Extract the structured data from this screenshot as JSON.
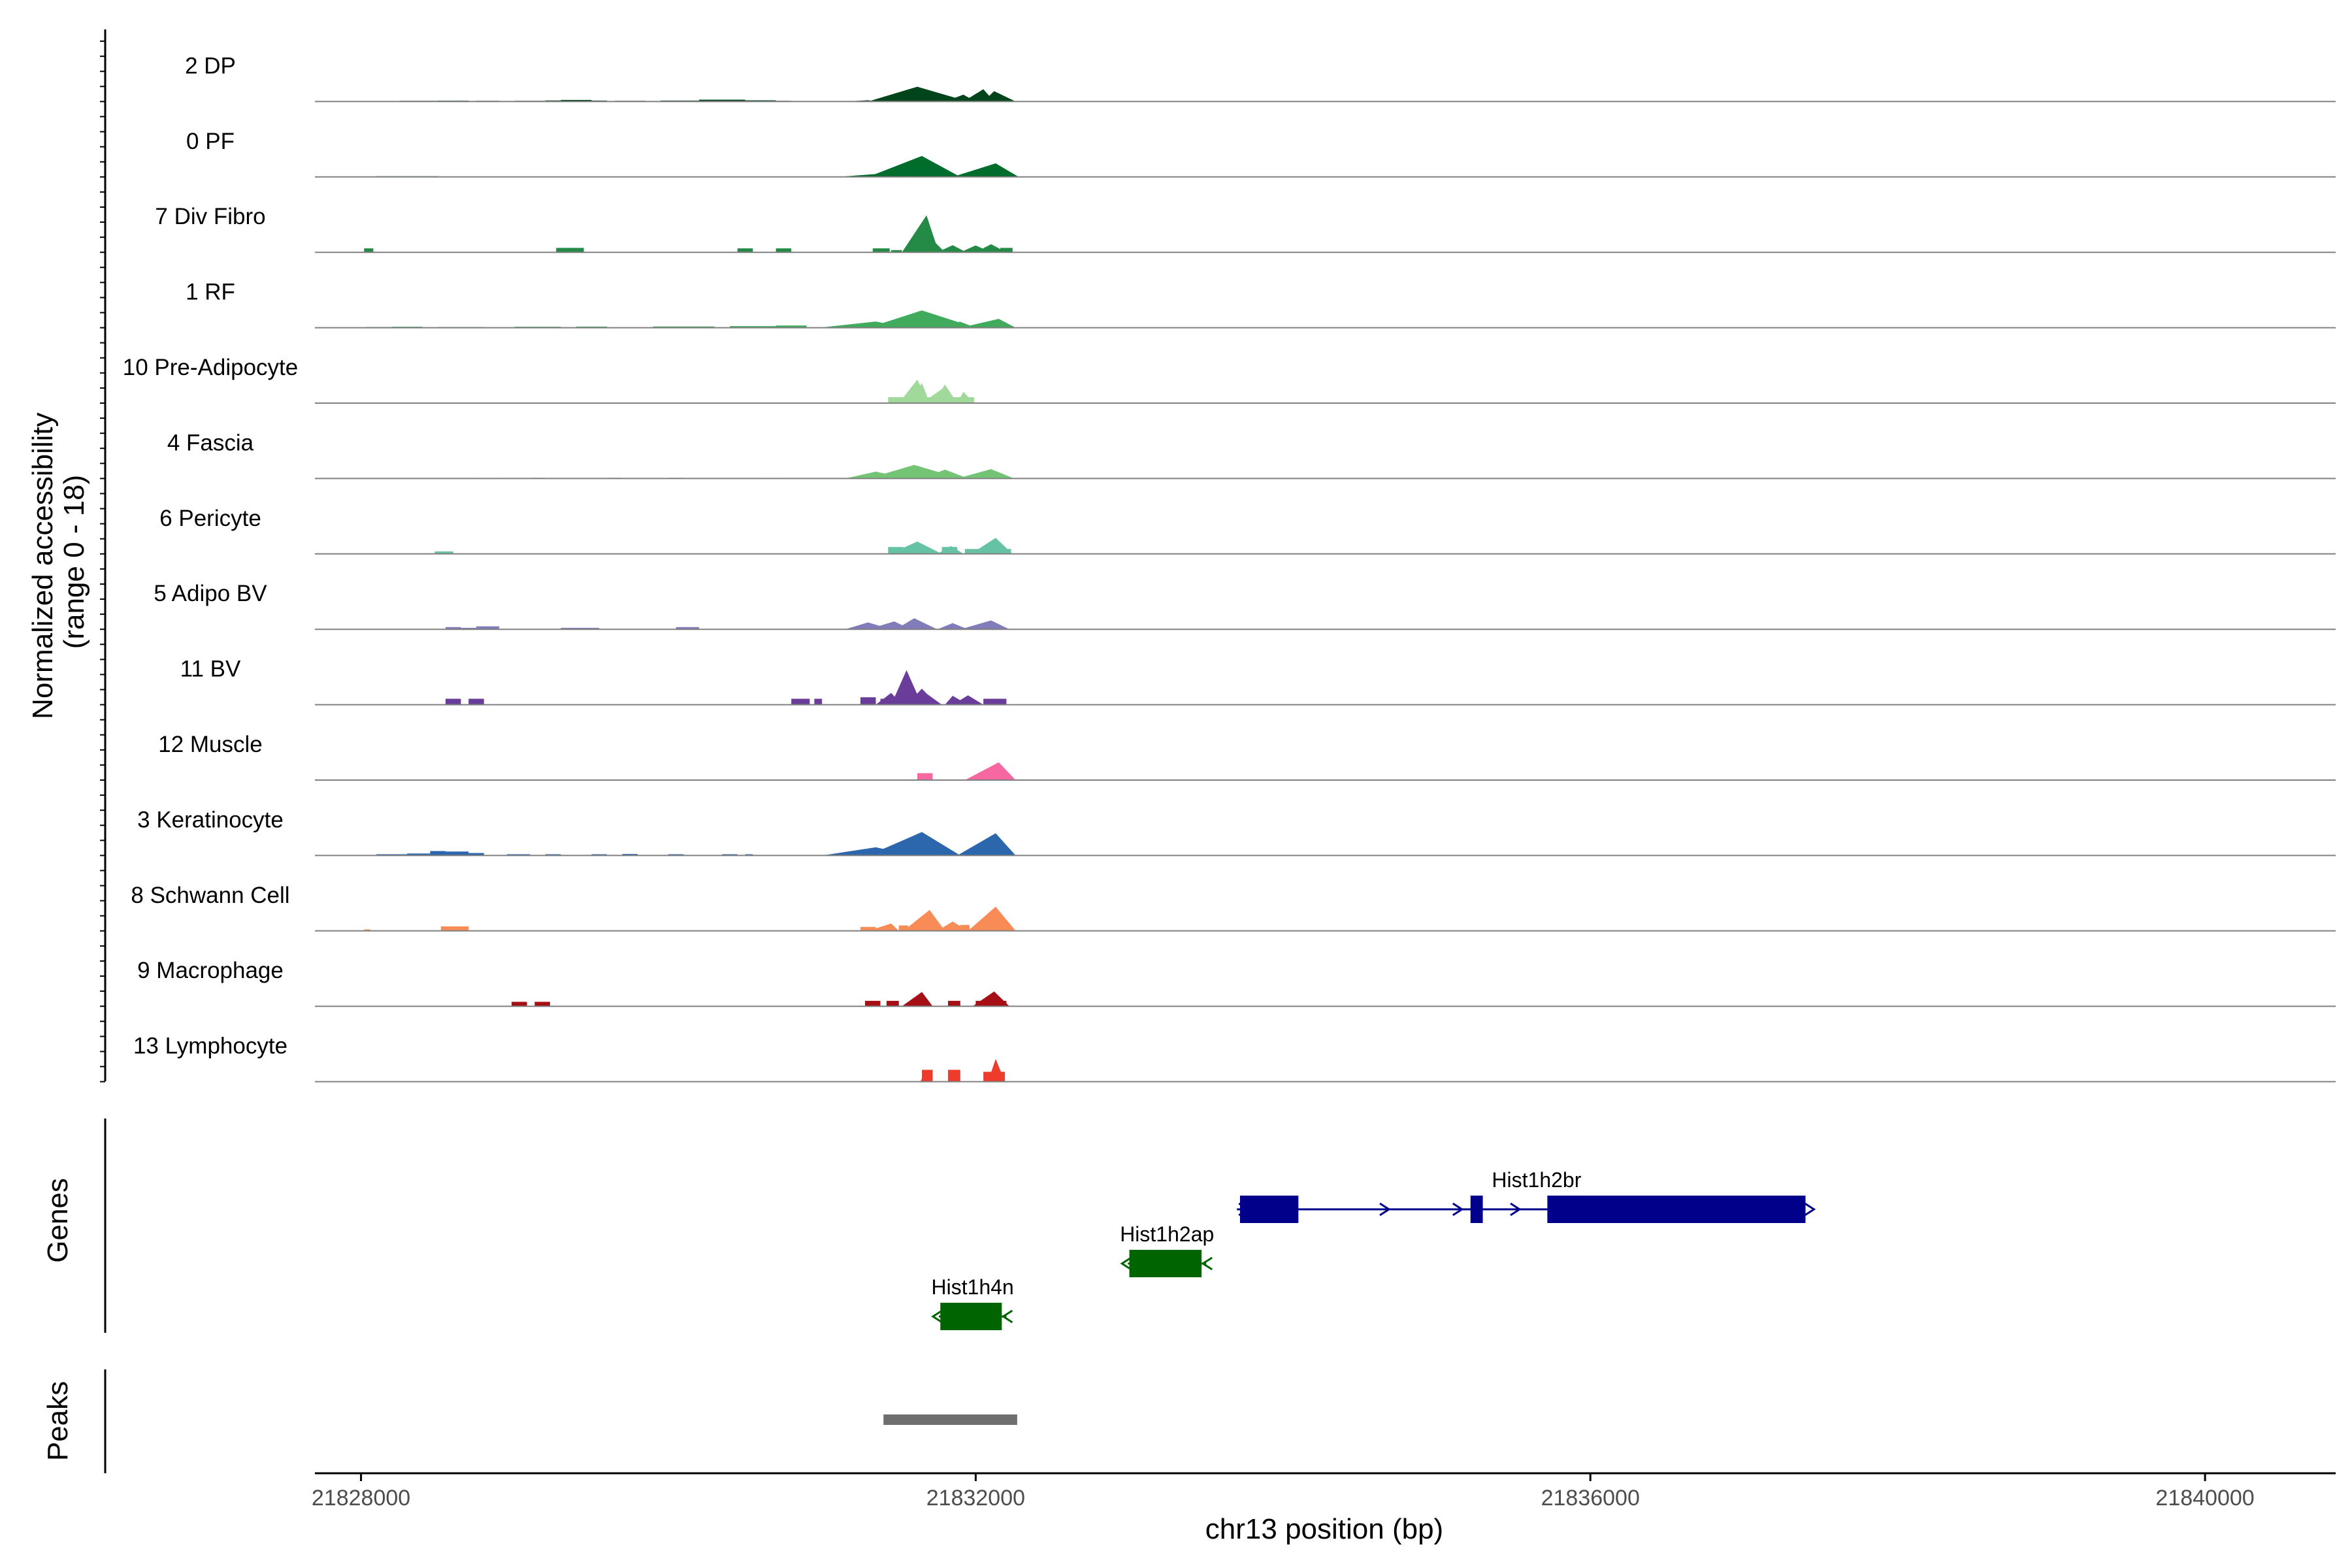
{
  "chart_data": {
    "type": "area",
    "xlabel": "chr13 position (bp)",
    "ylabel": "Normalized accessibility\n(range 0 - 18)",
    "xlim": [
      21827700,
      21840850
    ],
    "ylim": [
      0,
      18
    ],
    "xticks": [
      21828000,
      21832000,
      21836000,
      21840000
    ],
    "panels": {
      "genes_label": "Genes",
      "peaks_label": "Peaks"
    },
    "tracks": [
      {
        "name": "2 DP",
        "color": "#00441b",
        "segments": [
          [
            21828250,
            21828500,
            0.3
          ],
          [
            21828500,
            21828700,
            0.35
          ],
          [
            21828750,
            21828900,
            0.3
          ],
          [
            21829000,
            21829200,
            0.3
          ],
          [
            21829200,
            21829300,
            0.45
          ],
          [
            21829300,
            21829500,
            0.65
          ],
          [
            21829500,
            21829600,
            0.4
          ],
          [
            21829650,
            21829850,
            0.3
          ],
          [
            21829950,
            21830200,
            0.4
          ],
          [
            21830200,
            21830500,
            0.75
          ],
          [
            21830500,
            21830700,
            0.5
          ],
          [
            21830700,
            21830800,
            0.3
          ]
        ],
        "peaks": [
          [
            21831150,
            21831300,
            21831350,
            0.55
          ],
          [
            21831300,
            21831620,
            21831950,
            6.0
          ],
          [
            21831500,
            21831700,
            21831800,
            4.4
          ],
          [
            21831800,
            21831920,
            21832000,
            2.8
          ],
          [
            21831920,
            21832050,
            21832120,
            5.0
          ],
          [
            21832050,
            21832120,
            21832260,
            4.2
          ]
        ]
      },
      {
        "name": "0 PF",
        "color": "#006d2c",
        "segments": [
          [
            21828100,
            21828300,
            0.3
          ],
          [
            21828300,
            21828500,
            0.3
          ],
          [
            21828500,
            21828800,
            0.2
          ],
          [
            21828900,
            21829000,
            0.2
          ],
          [
            21829300,
            21829400,
            0.2
          ],
          [
            21829900,
            21830000,
            0.2
          ],
          [
            21830150,
            21830300,
            0.2
          ],
          [
            21830700,
            21830800,
            0.2
          ]
        ],
        "peaks": [
          [
            21831100,
            21831400,
            21831580,
            1.4
          ],
          [
            21831300,
            21831650,
            21831900,
            8.5
          ],
          [
            21831400,
            21831500,
            21831600,
            3.0
          ],
          [
            21831700,
            21831800,
            21831900,
            2.4
          ],
          [
            21831850,
            21832130,
            21832280,
            5.5
          ]
        ]
      },
      {
        "name": "7 Div Fibro",
        "color": "#238b45",
        "segments": [
          [
            21828020,
            21828080,
            1.6
          ],
          [
            21829270,
            21829450,
            1.8
          ],
          [
            21830450,
            21830550,
            1.6
          ],
          [
            21830700,
            21830800,
            1.6
          ],
          [
            21831330,
            21831440,
            1.6
          ],
          [
            21831450,
            21831520,
            0.9
          ],
          [
            21832160,
            21832240,
            1.8
          ]
        ],
        "peaks": [
          [
            21831520,
            21831680,
            21831760,
            15.0
          ],
          [
            21831560,
            21831720,
            21831800,
            5.0
          ],
          [
            21831750,
            21831850,
            21831940,
            2.9
          ],
          [
            21831900,
            21832000,
            21832100,
            2.8
          ],
          [
            21832000,
            21832100,
            21832200,
            3.3
          ]
        ]
      },
      {
        "name": "1 RF",
        "color": "#41ab5d",
        "segments": [
          [
            21828030,
            21828200,
            0.3
          ],
          [
            21828200,
            21828400,
            0.4
          ],
          [
            21828500,
            21828800,
            0.3
          ],
          [
            21829000,
            21829300,
            0.4
          ],
          [
            21829400,
            21829600,
            0.45
          ],
          [
            21829900,
            21830300,
            0.5
          ],
          [
            21830400,
            21830700,
            0.65
          ],
          [
            21830700,
            21830900,
            0.9
          ]
        ],
        "peaks": [
          [
            21830980,
            21831350,
            21831550,
            2.5
          ],
          [
            21831300,
            21831650,
            21832000,
            7.0
          ],
          [
            21831700,
            21831900,
            21832000,
            2.4
          ],
          [
            21831900,
            21832150,
            21832260,
            3.6
          ]
        ]
      },
      {
        "name": "10 Pre-Adipocyte",
        "color": "#a1d99b",
        "segments": [
          [
            21831430,
            21831990,
            2.4
          ]
        ],
        "peaks": [
          [
            21831500,
            21831620,
            21831700,
            9.5
          ],
          [
            21831580,
            21831650,
            21831700,
            8.2
          ],
          [
            21831650,
            21831800,
            21831880,
            6.6
          ],
          [
            21831720,
            21831800,
            21831880,
            7.5
          ],
          [
            21831880,
            21831920,
            21831990,
            4.6
          ]
        ]
      },
      {
        "name": "4 Fascia",
        "color": "#74c476",
        "segments": [
          [
            21828400,
            21828650,
            0.2
          ],
          [
            21828750,
            21828900,
            0.25
          ],
          [
            21829100,
            21829200,
            0.3
          ],
          [
            21829600,
            21829700,
            0.3
          ],
          [
            21830000,
            21830100,
            0.3
          ],
          [
            21830500,
            21830600,
            0.25
          ],
          [
            21830700,
            21830800,
            0.25
          ]
        ],
        "peaks": [
          [
            21831150,
            21831350,
            21831550,
            2.8
          ],
          [
            21831300,
            21831600,
            21831900,
            5.5
          ],
          [
            21831650,
            21831800,
            21831950,
            3.6
          ],
          [
            21831880,
            21832100,
            21832250,
            3.8
          ]
        ]
      },
      {
        "name": "6 Pericyte",
        "color": "#66c2a4",
        "segments": [
          [
            21828480,
            21828600,
            1.0
          ],
          [
            21831430,
            21831530,
            2.8
          ],
          [
            21831780,
            21831880,
            2.8
          ],
          [
            21831930,
            21832230,
            2.0
          ]
        ],
        "peaks": [
          [
            21831440,
            21831620,
            21831780,
            5.0
          ],
          [
            21831750,
            21831840,
            21831920,
            3.2
          ],
          [
            21831970,
            21832130,
            21832240,
            6.5
          ]
        ]
      },
      {
        "name": "5 Adipo BV",
        "color": "#807dba",
        "segments": [
          [
            21828550,
            21828650,
            0.9
          ],
          [
            21828650,
            21828750,
            0.6
          ],
          [
            21828750,
            21828900,
            1.2
          ],
          [
            21829300,
            21829550,
            0.6
          ],
          [
            21830050,
            21830200,
            0.9
          ],
          [
            21831550,
            21831650,
            1.5
          ]
        ],
        "peaks": [
          [
            21831150,
            21831300,
            21831450,
            2.8
          ],
          [
            21831300,
            21831470,
            21831580,
            3.2
          ],
          [
            21831480,
            21831600,
            21831750,
            4.5
          ],
          [
            21831750,
            21831850,
            21831950,
            2.5
          ],
          [
            21831900,
            21832100,
            21832220,
            3.6
          ]
        ]
      },
      {
        "name": "11 BV",
        "color": "#6a3d9a",
        "segments": [
          [
            21828550,
            21828650,
            2.4
          ],
          [
            21828700,
            21828800,
            2.4
          ],
          [
            21830800,
            21830920,
            2.4
          ],
          [
            21830950,
            21831000,
            2.4
          ],
          [
            21831250,
            21831350,
            3.0
          ],
          [
            21831380,
            21831450,
            2.4
          ],
          [
            21832050,
            21832200,
            2.4
          ]
        ],
        "peaks": [
          [
            21831350,
            21831450,
            21831520,
            4.8
          ],
          [
            21831450,
            21831550,
            21831650,
            14.0
          ],
          [
            21831550,
            21831650,
            21831750,
            6.5
          ],
          [
            21831600,
            21831680,
            21831780,
            4.5
          ],
          [
            21831800,
            21831850,
            21831950,
            3.6
          ],
          [
            21831850,
            21831950,
            21832050,
            3.8
          ]
        ]
      },
      {
        "name": "12 Muscle",
        "color": "#f768a1",
        "segments": [
          [
            21831620,
            21831720,
            2.8
          ]
        ],
        "peaks": [
          [
            21831930,
            21832150,
            21832260,
            7.2
          ]
        ]
      },
      {
        "name": "3 Keratinocyte",
        "color": "#2c66ac",
        "segments": [
          [
            21828100,
            21828300,
            0.5
          ],
          [
            21828300,
            21828450,
            0.8
          ],
          [
            21828450,
            21828550,
            1.8
          ],
          [
            21828550,
            21828700,
            1.6
          ],
          [
            21828700,
            21828800,
            1.0
          ],
          [
            21828950,
            21829100,
            0.5
          ],
          [
            21829200,
            21829300,
            0.5
          ],
          [
            21829500,
            21829600,
            0.5
          ],
          [
            21829700,
            21829800,
            0.6
          ],
          [
            21830000,
            21830100,
            0.5
          ],
          [
            21830350,
            21830450,
            0.5
          ],
          [
            21830500,
            21830550,
            0.5
          ]
        ],
        "peaks": [
          [
            21831000,
            21831350,
            21831600,
            3.3
          ],
          [
            21831300,
            21831650,
            21831900,
            9.5
          ],
          [
            21831880,
            21832130,
            21832260,
            9.0
          ]
        ]
      },
      {
        "name": "8 Schwann Cell",
        "color": "#f98c56",
        "segments": [
          [
            21828020,
            21828060,
            0.6
          ],
          [
            21828520,
            21828700,
            1.8
          ],
          [
            21831250,
            21831350,
            1.6
          ],
          [
            21831380,
            21831450,
            1.2
          ],
          [
            21831500,
            21831560,
            2.2
          ],
          [
            21831900,
            21831960,
            2.4
          ]
        ],
        "peaks": [
          [
            21831300,
            21831450,
            21831500,
            3.0
          ],
          [
            21831530,
            21831700,
            21831800,
            8.5
          ],
          [
            21831750,
            21831850,
            21831950,
            3.8
          ],
          [
            21831950,
            21832130,
            21832260,
            9.8
          ]
        ]
      },
      {
        "name": "9 Macrophage",
        "color": "#a50f15",
        "segments": [
          [
            21828980,
            21829080,
            1.8
          ],
          [
            21829130,
            21829230,
            1.8
          ],
          [
            21831280,
            21831380,
            2.2
          ],
          [
            21831420,
            21831500,
            2.2
          ],
          [
            21831820,
            21831900,
            2.2
          ],
          [
            21832000,
            21832200,
            2.2
          ]
        ],
        "peaks": [
          [
            21831520,
            21831650,
            21831720,
            5.8
          ],
          [
            21831980,
            21832120,
            21832220,
            6.0
          ]
        ]
      },
      {
        "name": "13 Lymphocyte",
        "color": "#ef3b2c",
        "segments": [
          [
            21831650,
            21831720,
            4.8
          ],
          [
            21831820,
            21831900,
            4.8
          ],
          [
            21832050,
            21832190,
            4.0
          ]
        ],
        "peaks": [
          [
            21831640,
            21831670,
            21831720,
            3.8
          ],
          [
            21832080,
            21832130,
            21832190,
            9.2
          ]
        ]
      }
    ],
    "genes": [
      {
        "name": "Hist1h2br",
        "color": "#00008b",
        "strand": "+",
        "start": 21833700,
        "end": 21837400,
        "exons": [
          [
            21833720,
            21834100
          ],
          [
            21835220,
            21835300
          ],
          [
            21835720,
            21837400
          ]
        ]
      },
      {
        "name": "Hist1h2ap",
        "color": "#006400",
        "strand": "-",
        "start": 21832990,
        "end": 21833500,
        "exons": [
          [
            21833000,
            21833470
          ]
        ]
      },
      {
        "name": "Hist1h4n",
        "color": "#006400",
        "strand": "-",
        "start": 21831760,
        "end": 21832200,
        "exons": [
          [
            21831770,
            21832170
          ]
        ]
      }
    ],
    "peaks_region": [
      [
        21831400,
        21832270
      ]
    ]
  }
}
